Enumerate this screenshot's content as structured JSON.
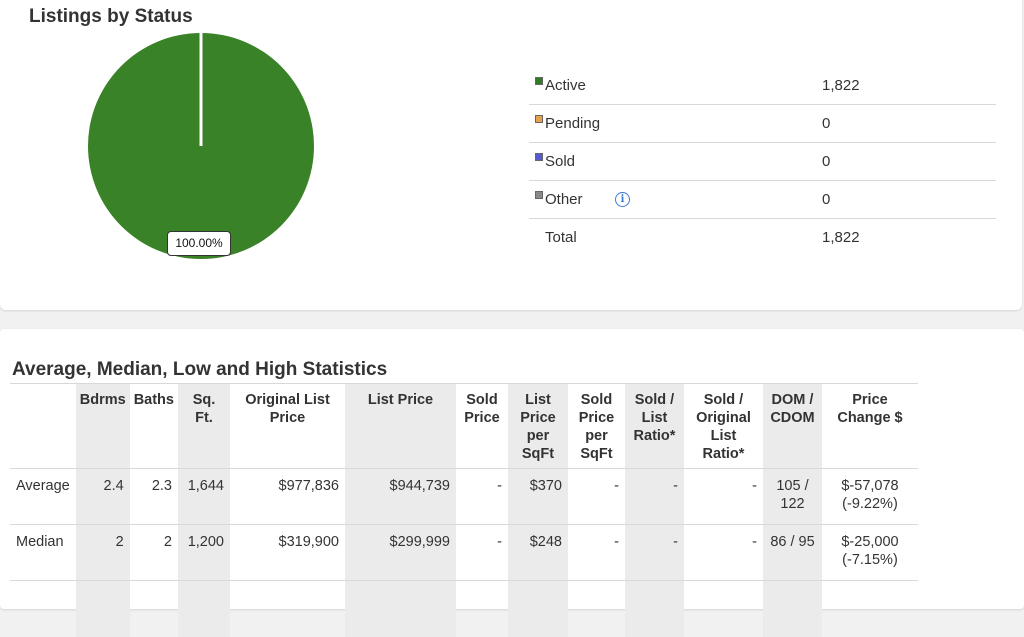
{
  "listings_by_status": {
    "title": "Listings by Status",
    "pie": {
      "slice_label": "100.00%",
      "color": "#3a8228"
    },
    "legend": [
      {
        "label": "Active",
        "value": "1,822",
        "color": "#2e7d24"
      },
      {
        "label": "Pending",
        "value": "0",
        "color": "#e8a04c"
      },
      {
        "label": "Sold",
        "value": "0",
        "color": "#5a5ad0"
      },
      {
        "label": "Other",
        "value": "0",
        "color": "#888888",
        "icon": "info-icon"
      }
    ],
    "total": {
      "label": "Total",
      "value": "1,822"
    }
  },
  "stats": {
    "title": "Average, Median, Low and High Statistics",
    "headers": [
      "",
      "Bdrms",
      "Baths",
      "Sq. Ft.",
      "Original List Price",
      "List Price",
      "Sold Price",
      "List Price per SqFt",
      "Sold Price per SqFt",
      "Sold / List Ratio*",
      "Sold / Original List Ratio*",
      "DOM / CDOM",
      "Price Change $"
    ],
    "rows": [
      {
        "label": "Average",
        "cells": [
          "2.4",
          "2.3",
          "1,644",
          "$977,836",
          "$944,739",
          "-",
          "$370",
          "-",
          "-",
          "-",
          "105 / 122",
          "$-57,078 (-9.22%)"
        ]
      },
      {
        "label": "Median",
        "cells": [
          "2",
          "2",
          "1,200",
          "$319,900",
          "$299,999",
          "-",
          "$248",
          "-",
          "-",
          "-",
          "86 / 95",
          "$-25,000 (-7.15%)"
        ]
      }
    ]
  }
}
